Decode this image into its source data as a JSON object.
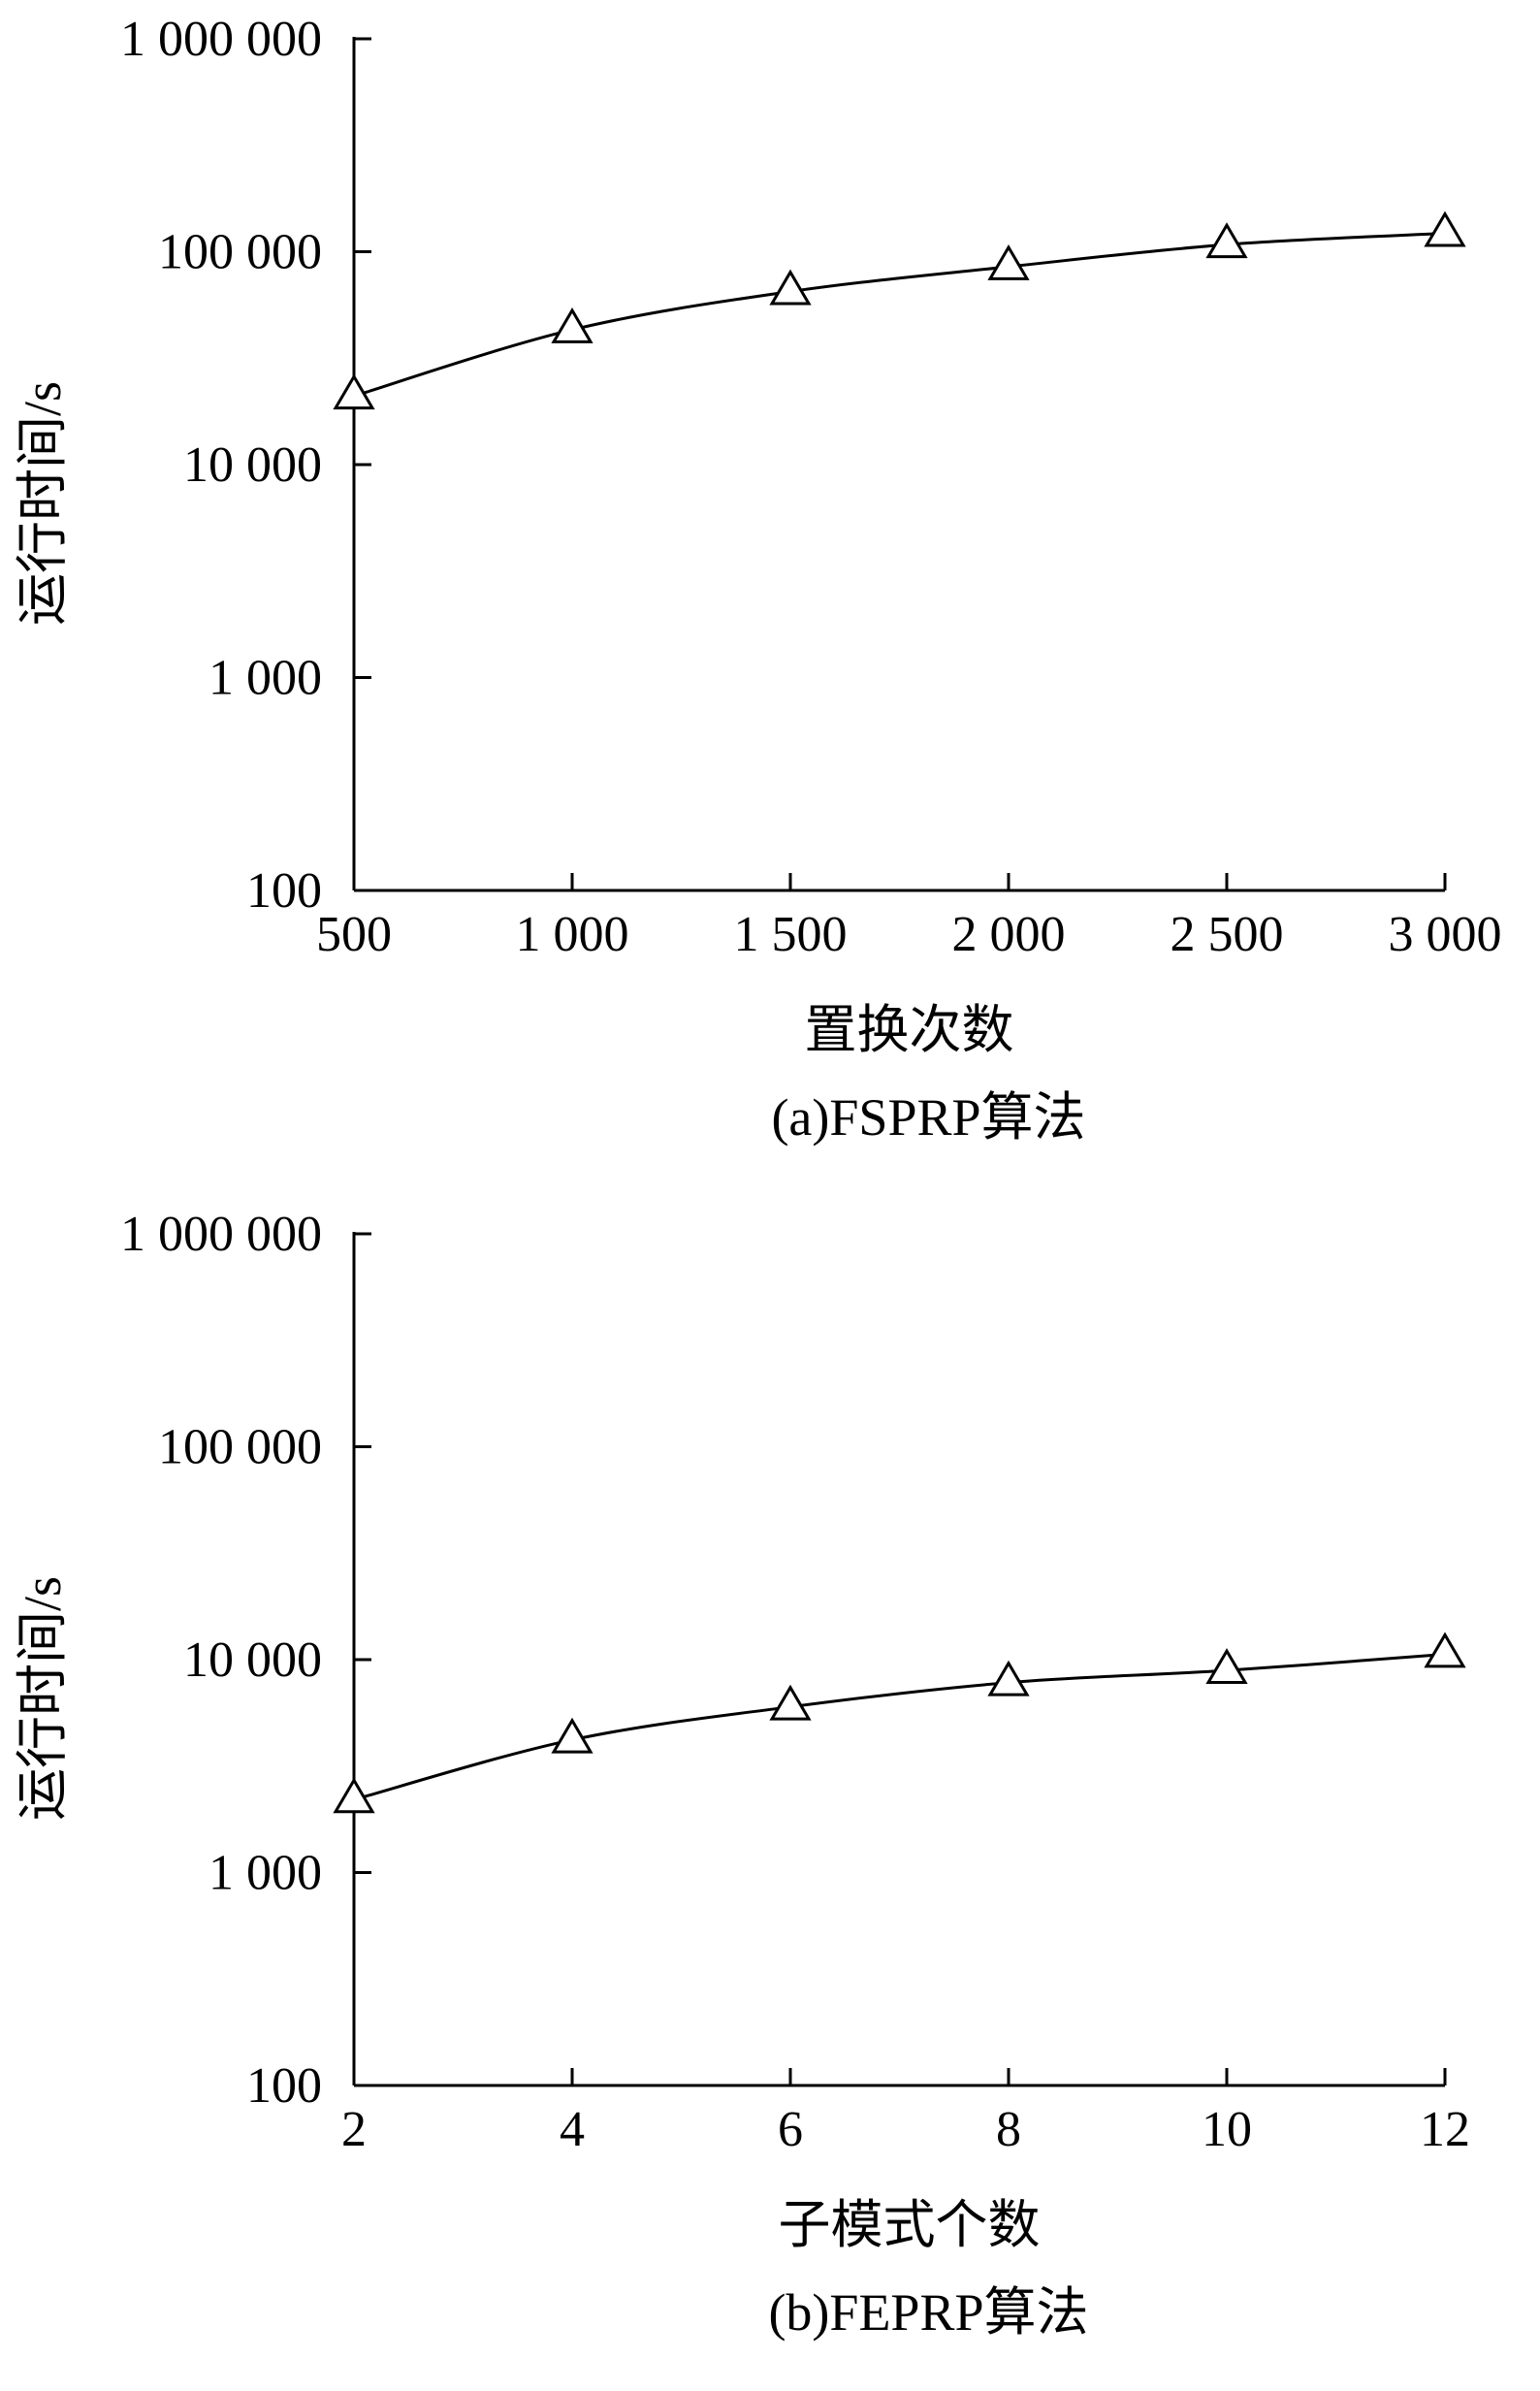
{
  "chart_data": [
    {
      "type": "line",
      "title": "(a)FSPRP算法",
      "xlabel": "置换次数",
      "ylabel": "运行时间/s",
      "y_scale": "log",
      "ylim": [
        100,
        1000000
      ],
      "y_ticks": [
        100,
        1000,
        10000,
        100000,
        1000000
      ],
      "y_tick_labels": [
        "100",
        "1 000",
        "10 000",
        "100 000",
        "1 000 000"
      ],
      "x_ticks": [
        500,
        1000,
        1500,
        2000,
        2500,
        3000
      ],
      "x_tick_labels": [
        "500",
        "1 000",
        "1 500",
        "2 000",
        "2 500",
        "3 000"
      ],
      "grid": false,
      "marker": "triangle-open",
      "series": [
        {
          "x": [
            500,
            1000,
            1500,
            2000,
            2500,
            3000
          ],
          "values": [
            21000,
            43000,
            65000,
            85000,
            108000,
            122000
          ]
        }
      ]
    },
    {
      "type": "line",
      "title": "(b)FEPRP算法",
      "xlabel": "子模式个数",
      "ylabel": "运行时间/s",
      "y_scale": "log",
      "ylim": [
        100,
        1000000
      ],
      "y_ticks": [
        100,
        1000,
        10000,
        100000,
        1000000
      ],
      "y_tick_labels": [
        "100",
        "1 000",
        "10 000",
        "100 000",
        "1 000 000"
      ],
      "x_ticks": [
        2,
        4,
        6,
        8,
        10,
        12
      ],
      "x_tick_labels": [
        "2",
        "4",
        "6",
        "8",
        "10",
        "12"
      ],
      "grid": false,
      "marker": "triangle-open",
      "series": [
        {
          "x": [
            2,
            4,
            6,
            8,
            10,
            12
          ],
          "values": [
            2200,
            4200,
            6000,
            7800,
            8900,
            10600
          ]
        }
      ]
    }
  ]
}
